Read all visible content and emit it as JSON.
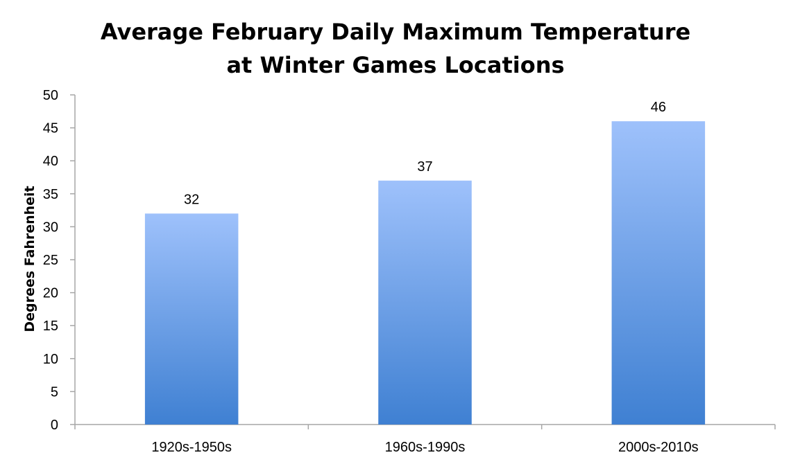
{
  "chart_data": {
    "type": "bar",
    "title": [
      "Average February Daily Maximum Temperature",
      "at Winter Games Locations"
    ],
    "xlabel": "",
    "ylabel": "Degrees Fahrenheit",
    "categories": [
      "1920s-1950s",
      "1960s-1990s",
      "2000s-2010s"
    ],
    "values": [
      32,
      37,
      46
    ],
    "data_labels": [
      "32",
      "37",
      "46"
    ],
    "ylim": [
      0,
      50
    ],
    "yticks": [
      0,
      5,
      10,
      15,
      20,
      25,
      30,
      35,
      40,
      45,
      50
    ],
    "grid": false,
    "legend": "none",
    "colors": {
      "bar_top": "#9ec1fb",
      "bar_bottom": "#3f80d2",
      "axis": "#a6a6a6"
    }
  }
}
